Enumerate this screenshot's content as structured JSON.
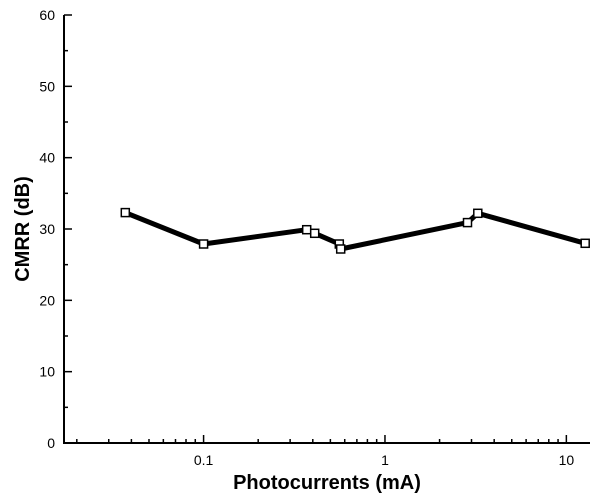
{
  "chart_data": {
    "type": "line",
    "title": "",
    "xlabel": "Photocurrents (mA)",
    "ylabel": "CMRR (dB)",
    "x_scale": "log",
    "xlim": [
      0.017,
      13.5
    ],
    "ylim": [
      0,
      60
    ],
    "x_ticks": [
      {
        "value": 0.1,
        "label": "0.1"
      },
      {
        "value": 1,
        "label": "1"
      },
      {
        "value": 10,
        "label": "10"
      }
    ],
    "x_minor_ticks": [
      0.02,
      0.03,
      0.04,
      0.05,
      0.06,
      0.07,
      0.08,
      0.09,
      0.2,
      0.3,
      0.4,
      0.5,
      0.6,
      0.7,
      0.8,
      0.9,
      2,
      3,
      4,
      5,
      6,
      7,
      8,
      9
    ],
    "y_ticks": [
      {
        "value": 0,
        "label": "0"
      },
      {
        "value": 10,
        "label": "10"
      },
      {
        "value": 20,
        "label": "20"
      },
      {
        "value": 30,
        "label": "30"
      },
      {
        "value": 40,
        "label": "40"
      },
      {
        "value": 50,
        "label": "50"
      },
      {
        "value": 60,
        "label": "60"
      }
    ],
    "y_minor_ticks": [
      5,
      15,
      25,
      35,
      45,
      55
    ],
    "grid": false,
    "marker": "open-square",
    "series": [
      {
        "x": [
          0.037,
          0.1,
          0.37,
          0.41,
          0.56,
          0.57,
          2.85,
          3.25,
          12.7
        ],
        "y": [
          32.3,
          27.9,
          29.9,
          29.4,
          27.9,
          27.2,
          30.9,
          32.2,
          28.0
        ]
      }
    ]
  }
}
